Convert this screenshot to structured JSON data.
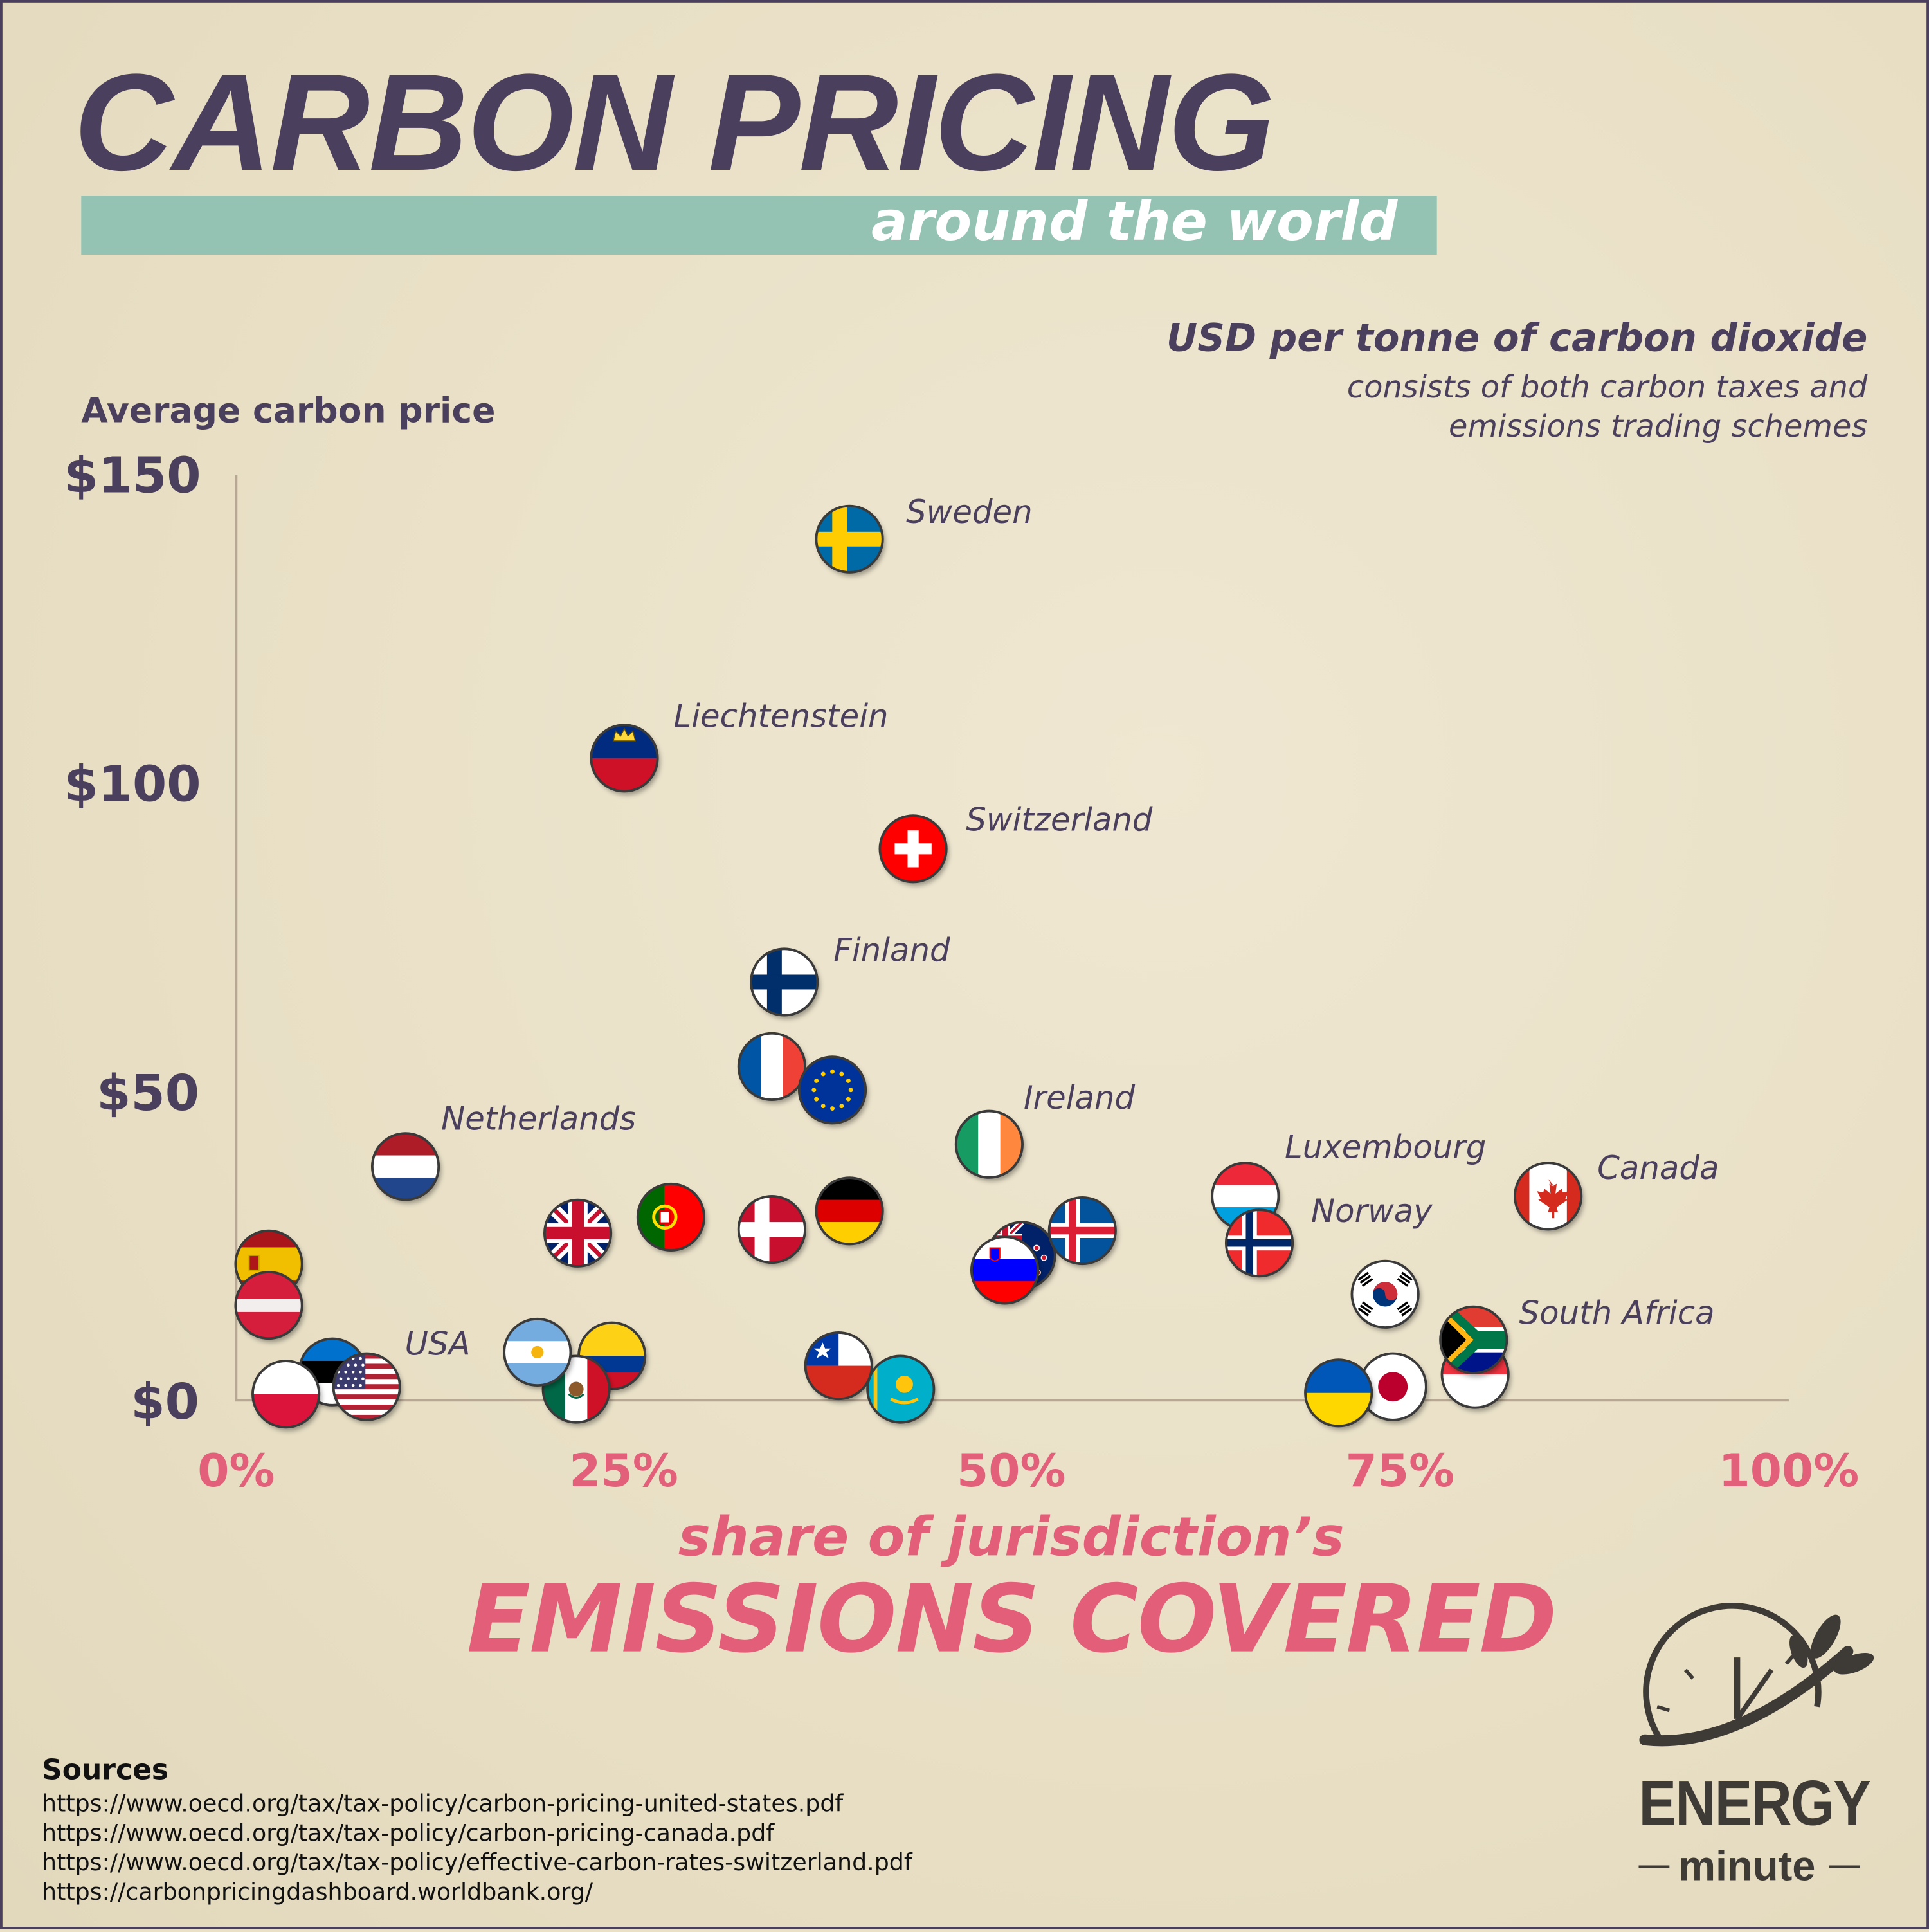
{
  "header": {
    "title": "CARBON PRICING",
    "subtitle": "around the world"
  },
  "unit": {
    "title": "USD per tonne of carbon dioxide",
    "note_line1": "consists of both carbon taxes and",
    "note_line2": "emissions trading schemes"
  },
  "colors": {
    "title": "#4a3f5c",
    "accent_teal": "#95c3b3",
    "accent_pink": "#e35f79",
    "background": "#e9e0c6"
  },
  "chart_data": {
    "type": "scatter",
    "ylabel": "Average carbon price",
    "xlabel_line1": "share of jurisdiction’s",
    "xlabel_line2": "EMISSIONS COVERED",
    "xlim": [
      0,
      100
    ],
    "ylim": [
      0,
      150
    ],
    "x_ticks": [
      "0%",
      "25%",
      "50%",
      "75%",
      "100%"
    ],
    "y_ticks": [
      "$0",
      "$50",
      "$100",
      "$150"
    ],
    "grid": false,
    "marker": "country flag",
    "points": [
      {
        "flag": "flag-sweden",
        "x": 39.5,
        "y": 139.6,
        "label": "Sweden"
      },
      {
        "flag": "flag-liechtenstein",
        "x": 25.0,
        "y": 104.1,
        "label": "Liechtenstein"
      },
      {
        "flag": "flag-switzerland",
        "x": 43.6,
        "y": 89.4,
        "label": "Switzerland"
      },
      {
        "flag": "flag-finland",
        "x": 35.3,
        "y": 67.8,
        "label": "Finland"
      },
      {
        "flag": "flag-france",
        "x": 34.5,
        "y": 54.1
      },
      {
        "flag": "flag-european-union",
        "x": 38.4,
        "y": 50.3
      },
      {
        "flag": "flag-ireland",
        "x": 48.5,
        "y": 41.5,
        "label": "Ireland"
      },
      {
        "flag": "flag-netherlands",
        "x": 10.9,
        "y": 37.9,
        "label": "Netherlands"
      },
      {
        "flag": "flag-luxembourg",
        "x": 65.0,
        "y": 33.1,
        "label": "Luxembourg"
      },
      {
        "flag": "flag-norway",
        "x": 65.9,
        "y": 25.5,
        "label": "Norway"
      },
      {
        "flag": "flag-canada",
        "x": 84.5,
        "y": 33.1,
        "label": "Canada"
      },
      {
        "flag": "flag-new-zealand",
        "x": 50.6,
        "y": 23.5
      },
      {
        "flag": "flag-iceland",
        "x": 54.5,
        "y": 27.5
      },
      {
        "flag": "flag-slovenia",
        "x": 49.5,
        "y": 21.1
      },
      {
        "flag": "flag-germany",
        "x": 39.5,
        "y": 30.7
      },
      {
        "flag": "flag-denmark",
        "x": 34.5,
        "y": 27.7
      },
      {
        "flag": "flag-portugal",
        "x": 28.0,
        "y": 29.7
      },
      {
        "flag": "flag-united-kingdom",
        "x": 22.0,
        "y": 27.1
      },
      {
        "flag": "flag-spain",
        "x": 2.1,
        "y": 22.1
      },
      {
        "flag": "flag-latvia",
        "x": 2.1,
        "y": 15.4
      },
      {
        "flag": "flag-south-korea",
        "x": 74.0,
        "y": 17.2
      },
      {
        "flag": "flag-singapore",
        "x": 79.8,
        "y": 4.2
      },
      {
        "flag": "flag-south-africa",
        "x": 79.7,
        "y": 9.8,
        "label": "South Africa"
      },
      {
        "flag": "flag-japan",
        "x": 74.5,
        "y": 2.2
      },
      {
        "flag": "flag-ukraine",
        "x": 71.0,
        "y": 1.2
      },
      {
        "flag": "flag-chile",
        "x": 38.8,
        "y": 5.6
      },
      {
        "flag": "flag-kazakhstan",
        "x": 42.8,
        "y": 1.8
      },
      {
        "flag": "flag-colombia",
        "x": 24.2,
        "y": 7.2
      },
      {
        "flag": "flag-mexico",
        "x": 21.9,
        "y": 1.8
      },
      {
        "flag": "flag-argentina",
        "x": 19.4,
        "y": 7.8
      },
      {
        "flag": "flag-estonia",
        "x": 6.2,
        "y": 4.6
      },
      {
        "flag": "flag-poland",
        "x": 3.2,
        "y": 1.0
      },
      {
        "flag": "flag-usa",
        "x": 8.4,
        "y": 2.2,
        "label": "USA"
      }
    ]
  },
  "sources": {
    "title": "Sources",
    "items": [
      "https://www.oecd.org/tax/tax-policy/carbon-pricing-united-states.pdf",
      "https://www.oecd.org/tax/tax-policy/carbon-pricing-canada.pdf",
      "https://www.oecd.org/tax/tax-policy/effective-carbon-rates-switzerland.pdf",
      "https://carbonpricingdashboard.worldbank.org/"
    ]
  },
  "logo": {
    "line1": "ENERGY",
    "line2": "minute"
  }
}
